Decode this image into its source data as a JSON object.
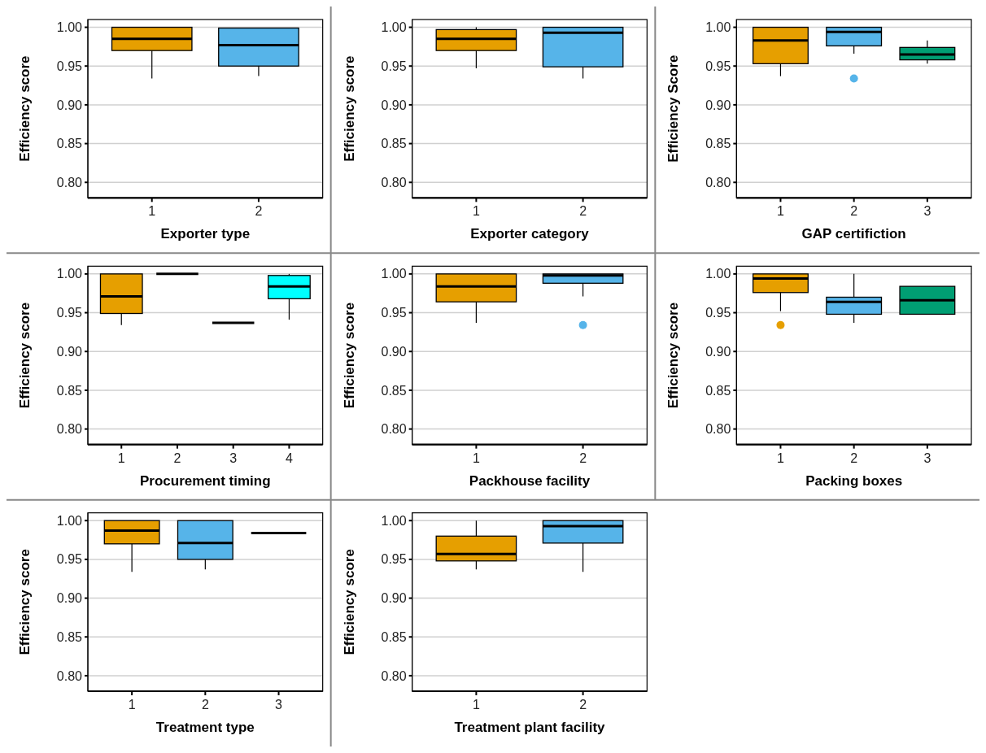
{
  "chart_data": [
    {
      "type": "box",
      "categories": [
        "1",
        "2"
      ],
      "xlabel": "Exporter type",
      "ylabel": "Efficiency score",
      "ylim": [
        0.78,
        1.01
      ],
      "yticks": [
        {
          "value": 0.8,
          "label": "0.80"
        },
        {
          "value": 0.85,
          "label": "0.85"
        },
        {
          "value": 0.9,
          "label": "0.90"
        },
        {
          "value": 0.95,
          "label": "0.95"
        },
        {
          "value": 1,
          "label": "1.00"
        }
      ],
      "grid": "y",
      "colors": [
        "#e69f00",
        "#56b4e9"
      ],
      "boxes": [
        {
          "low": 0.934,
          "q1": 0.97,
          "median": 0.985,
          "q3": 1.0,
          "high": 1.0
        },
        {
          "low": 0.937,
          "q1": 0.95,
          "median": 0.977,
          "q3": 0.999,
          "high": 0.999
        }
      ]
    },
    {
      "type": "box",
      "categories": [
        "1",
        "2"
      ],
      "xlabel": "Exporter category",
      "ylabel": "Efficiency score",
      "ylim": [
        0.78,
        1.01
      ],
      "yticks": [
        {
          "value": 0.8,
          "label": "0.80"
        },
        {
          "value": 0.85,
          "label": "0.85"
        },
        {
          "value": 0.9,
          "label": "0.90"
        },
        {
          "value": 0.95,
          "label": "0.95"
        },
        {
          "value": 1,
          "label": "1.00"
        }
      ],
      "grid": "y",
      "colors": [
        "#e69f00",
        "#56b4e9"
      ],
      "boxes": [
        {
          "low": 0.947,
          "q1": 0.97,
          "median": 0.985,
          "q3": 0.997,
          "high": 1.0
        },
        {
          "low": 0.934,
          "q1": 0.949,
          "median": 0.993,
          "q3": 1.0,
          "high": 1.0
        }
      ]
    },
    {
      "type": "box",
      "categories": [
        "1",
        "2",
        "3"
      ],
      "xlabel": "GAP certifiction",
      "ylabel": "Efficiency Score",
      "ylim": [
        0.78,
        1.01
      ],
      "yticks": [
        {
          "value": 0.8,
          "label": "0.80"
        },
        {
          "value": 0.85,
          "label": "0.85"
        },
        {
          "value": 0.9,
          "label": "0.90"
        },
        {
          "value": 0.95,
          "label": "0.95"
        },
        {
          "value": 1,
          "label": "1.00"
        }
      ],
      "grid": "y",
      "colors": [
        "#e69f00",
        "#56b4e9",
        "#009e73"
      ],
      "boxes": [
        {
          "low": 0.937,
          "q1": 0.953,
          "median": 0.983,
          "q3": 1.0,
          "high": 1.0
        },
        {
          "low": 0.966,
          "q1": 0.976,
          "median": 0.994,
          "q3": 1.0,
          "high": 1.0,
          "outliers": [
            0.934
          ]
        },
        {
          "low": 0.953,
          "q1": 0.958,
          "median": 0.965,
          "q3": 0.974,
          "high": 0.983
        }
      ]
    },
    {
      "type": "box",
      "categories": [
        "1",
        "2",
        "3",
        "4"
      ],
      "xlabel": "Procurement timing",
      "ylabel": "Efficiency score",
      "ylim": [
        0.78,
        1.01
      ],
      "yticks": [
        {
          "value": 0.8,
          "label": "0.80"
        },
        {
          "value": 0.85,
          "label": "0.85"
        },
        {
          "value": 0.9,
          "label": "0.90"
        },
        {
          "value": 0.95,
          "label": "0.95"
        },
        {
          "value": 1,
          "label": "1.00"
        }
      ],
      "grid": "y",
      "colors": [
        "#e69f00",
        "#000000",
        "#000000",
        "#00ffff"
      ],
      "boxes": [
        {
          "low": 0.934,
          "q1": 0.949,
          "median": 0.971,
          "q3": 1.0,
          "high": 1.0
        },
        {
          "low": 1.0,
          "q1": 1.0,
          "median": 1.0,
          "q3": 1.0,
          "high": 1.0
        },
        {
          "low": 0.937,
          "q1": 0.937,
          "median": 0.937,
          "q3": 0.937,
          "high": 0.937
        },
        {
          "low": 0.941,
          "q1": 0.968,
          "median": 0.984,
          "q3": 0.998,
          "high": 1.0
        }
      ]
    },
    {
      "type": "box",
      "categories": [
        "1",
        "2"
      ],
      "xlabel": "Packhouse facility",
      "ylabel": "Efficiency score",
      "ylim": [
        0.78,
        1.01
      ],
      "yticks": [
        {
          "value": 0.8,
          "label": "0.80"
        },
        {
          "value": 0.85,
          "label": "0.85"
        },
        {
          "value": 0.9,
          "label": "0.90"
        },
        {
          "value": 0.95,
          "label": "0.95"
        },
        {
          "value": 1,
          "label": "1.00"
        }
      ],
      "grid": "y",
      "colors": [
        "#e69f00",
        "#56b4e9"
      ],
      "boxes": [
        {
          "low": 0.937,
          "q1": 0.964,
          "median": 0.984,
          "q3": 1.0,
          "high": 1.0
        },
        {
          "low": 0.971,
          "q1": 0.988,
          "median": 0.998,
          "q3": 1.0,
          "high": 1.0,
          "outliers": [
            0.934
          ]
        }
      ]
    },
    {
      "type": "box",
      "categories": [
        "1",
        "2",
        "3"
      ],
      "xlabel": "Packing boxes",
      "ylabel": "Efficiency score",
      "ylim": [
        0.78,
        1.01
      ],
      "yticks": [
        {
          "value": 0.8,
          "label": "0.80"
        },
        {
          "value": 0.85,
          "label": "0.85"
        },
        {
          "value": 0.9,
          "label": "0.90"
        },
        {
          "value": 0.95,
          "label": "0.95"
        },
        {
          "value": 1,
          "label": "1.00"
        }
      ],
      "grid": "y",
      "colors": [
        "#e69f00",
        "#56b4e9",
        "#009e73"
      ],
      "boxes": [
        {
          "low": 0.952,
          "q1": 0.976,
          "median": 0.994,
          "q3": 1.0,
          "high": 1.0,
          "outliers": [
            0.934
          ]
        },
        {
          "low": 0.937,
          "q1": 0.948,
          "median": 0.964,
          "q3": 0.97,
          "high": 1.0
        },
        {
          "low": 0.948,
          "q1": 0.948,
          "median": 0.966,
          "q3": 0.984,
          "high": 0.984
        }
      ]
    },
    {
      "type": "box",
      "categories": [
        "1",
        "2",
        "3"
      ],
      "xlabel": "Treatment type",
      "ylabel": "Efficiency score",
      "ylim": [
        0.78,
        1.01
      ],
      "yticks": [
        {
          "value": 0.8,
          "label": "0.80"
        },
        {
          "value": 0.85,
          "label": "0.85"
        },
        {
          "value": 0.9,
          "label": "0.90"
        },
        {
          "value": 0.95,
          "label": "0.95"
        },
        {
          "value": 1,
          "label": "1.00"
        }
      ],
      "grid": "y",
      "colors": [
        "#e69f00",
        "#56b4e9",
        "#000000"
      ],
      "boxes": [
        {
          "low": 0.934,
          "q1": 0.97,
          "median": 0.987,
          "q3": 1.0,
          "high": 1.0
        },
        {
          "low": 0.937,
          "q1": 0.95,
          "median": 0.971,
          "q3": 1.0,
          "high": 1.0
        },
        {
          "low": 0.984,
          "q1": 0.984,
          "median": 0.984,
          "q3": 0.984,
          "high": 0.984
        }
      ]
    },
    {
      "type": "box",
      "categories": [
        "1",
        "2"
      ],
      "xlabel": "Treatment plant facility",
      "ylabel": "Efficiency score",
      "ylim": [
        0.78,
        1.01
      ],
      "yticks": [
        {
          "value": 0.8,
          "label": "0.80"
        },
        {
          "value": 0.85,
          "label": "0.85"
        },
        {
          "value": 0.9,
          "label": "0.90"
        },
        {
          "value": 0.95,
          "label": "0.95"
        },
        {
          "value": 1,
          "label": "1.00"
        }
      ],
      "grid": "y",
      "colors": [
        "#e69f00",
        "#56b4e9"
      ],
      "boxes": [
        {
          "low": 0.937,
          "q1": 0.948,
          "median": 0.957,
          "q3": 0.98,
          "high": 1.0
        },
        {
          "low": 0.934,
          "q1": 0.971,
          "median": 0.993,
          "q3": 1.0,
          "high": 1.0
        }
      ]
    }
  ]
}
